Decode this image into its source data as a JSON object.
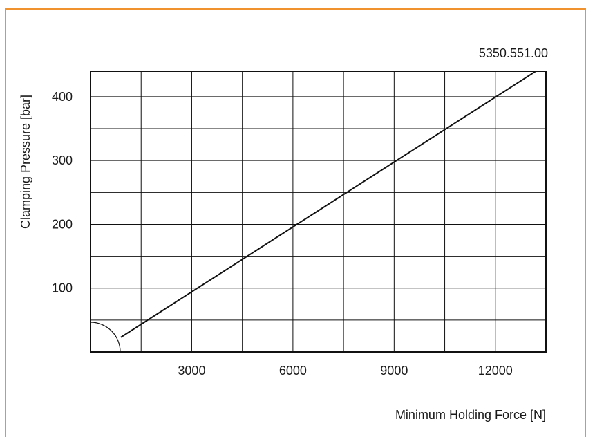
{
  "colors": {
    "frame_border": "#f0922e",
    "line": "#111111",
    "grid": "#111111"
  },
  "chart_data": {
    "type": "line",
    "title": "5350.551.00",
    "xlabel": "Minimum Holding Force [N]",
    "ylabel": "Clamping Pressure [bar]",
    "xlim": [
      0,
      13500
    ],
    "ylim": [
      0,
      440
    ],
    "xticks": [
      3000,
      6000,
      9000,
      12000
    ],
    "yticks": [
      100,
      200,
      300,
      400
    ],
    "xtick_labels": [
      "3000",
      "6000",
      "9000",
      "12000"
    ],
    "ytick_labels": [
      "100",
      "200",
      "300",
      "400"
    ],
    "grid": true,
    "series": [
      {
        "x": [
          900,
          13200
        ],
        "y": [
          23,
          440
        ]
      }
    ]
  }
}
